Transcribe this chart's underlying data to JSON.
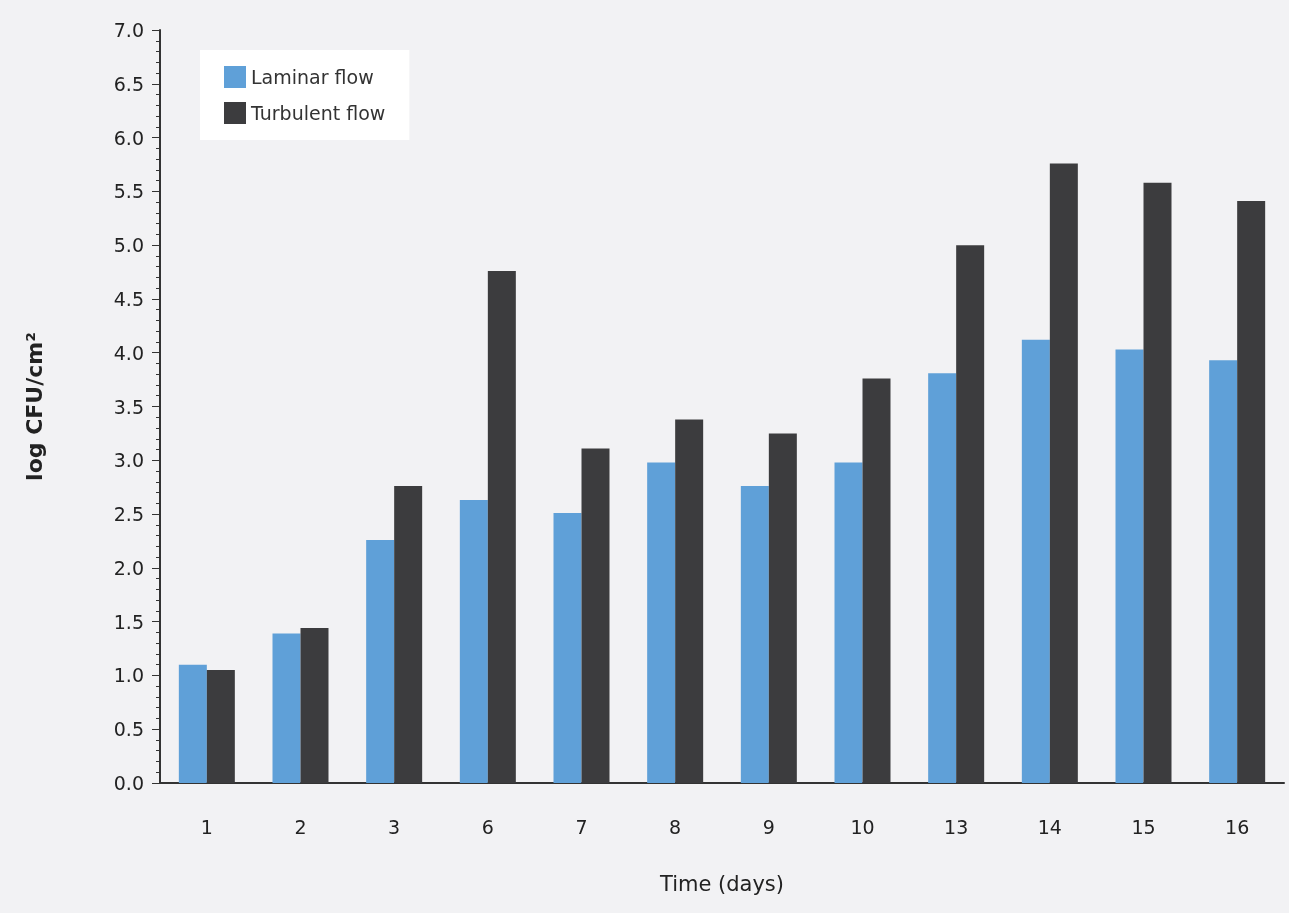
{
  "chart_data": {
    "type": "bar",
    "xlabel": "Time (days)",
    "ylabel": "log CFU/cm²",
    "categories": [
      "1",
      "2",
      "3",
      "6",
      "7",
      "8",
      "9",
      "10",
      "13",
      "14",
      "15",
      "16"
    ],
    "series": [
      {
        "name": "Laminar flow",
        "color": "#5fa0d8",
        "values": [
          1.1,
          1.39,
          2.26,
          2.63,
          2.51,
          2.98,
          2.76,
          2.98,
          3.81,
          4.12,
          4.03,
          3.93
        ]
      },
      {
        "name": "Turbulent flow",
        "color": "#3c3c3e",
        "values": [
          1.05,
          1.44,
          2.76,
          4.76,
          3.11,
          3.38,
          3.25,
          3.76,
          5.0,
          5.76,
          5.58,
          5.41
        ]
      }
    ],
    "ylim": [
      0,
      7
    ],
    "yticks": [
      {
        "value": 0,
        "label": "0.0"
      },
      {
        "value": 0.5,
        "label": "0.5"
      },
      {
        "value": 1,
        "label": "1.0"
      },
      {
        "value": 1.5,
        "label": "1.5"
      },
      {
        "value": 2,
        "label": "2.0"
      },
      {
        "value": 2.5,
        "label": "2.5"
      },
      {
        "value": 3,
        "label": "3.0"
      },
      {
        "value": 3.5,
        "label": "3.5"
      },
      {
        "value": 4,
        "label": "4.0"
      },
      {
        "value": 4.5,
        "label": "4.5"
      },
      {
        "value": 5,
        "label": "5.0"
      },
      {
        "value": 5.5,
        "label": "5.5"
      },
      {
        "value": 6,
        "label": "6.0"
      },
      {
        "value": 6.5,
        "label": "6.5"
      },
      {
        "value": 7,
        "label": "7.0"
      }
    ],
    "grid": false,
    "legend": "top left"
  }
}
